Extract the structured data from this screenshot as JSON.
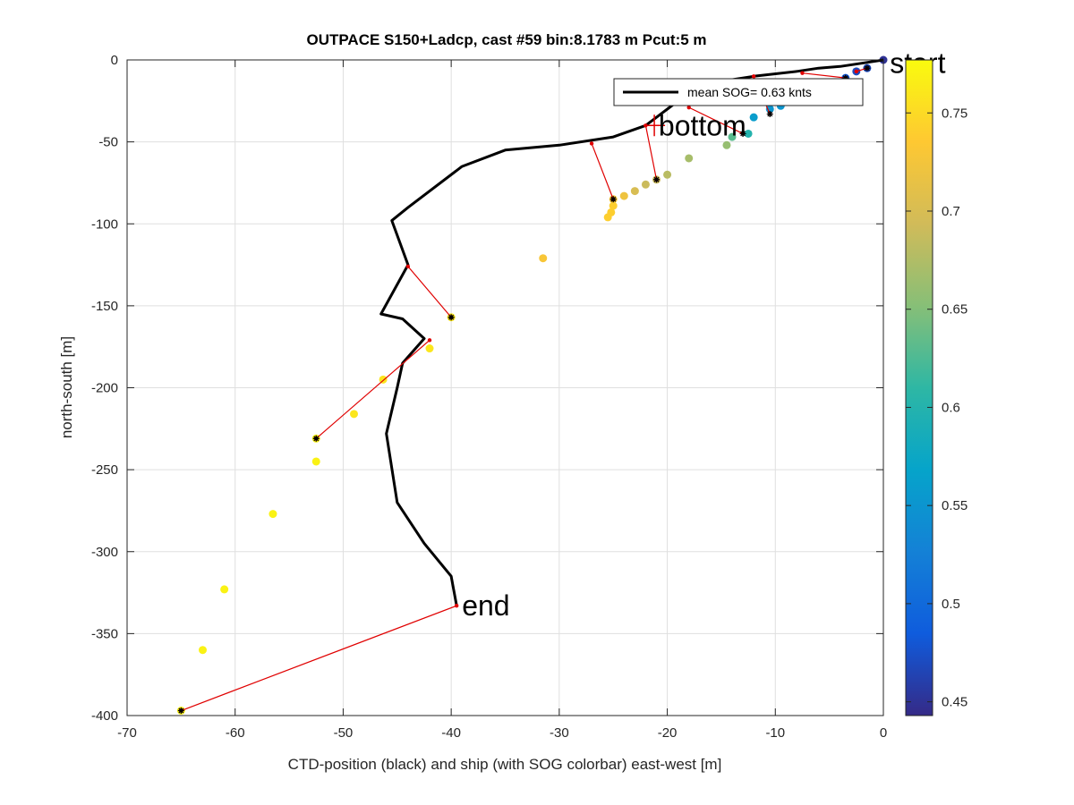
{
  "chart_data": {
    "type": "scatter",
    "title": "OUTPACE S150+Ladcp, cast #59 bin:8.1783 m  Pcut:5 m",
    "xlabel": "CTD-position (black) and ship (with SOG colorbar) east-west [m]",
    "ylabel": "north-south [m]",
    "xlim": [
      -70,
      0
    ],
    "ylim": [
      -400,
      0
    ],
    "xticks": [
      -70,
      -60,
      -50,
      -40,
      -30,
      -20,
      -10,
      0
    ],
    "yticks": [
      0,
      -50,
      -100,
      -150,
      -200,
      -250,
      -300,
      -350,
      -400
    ],
    "xtick_labels": [
      "-70",
      "-60",
      "-50",
      "-40",
      "-30",
      "-20",
      "-10",
      "0"
    ],
    "ytick_labels": [
      "0",
      "-50",
      "-100",
      "-150",
      "-200",
      "-250",
      "-300",
      "-350",
      "-400"
    ],
    "grid": true,
    "legend": {
      "label": "mean SOG=  0.63 knts",
      "location": "top-right"
    },
    "colorbar": {
      "clim": [
        0.443,
        0.777
      ],
      "ticks": [
        0.45,
        0.5,
        0.55,
        0.6,
        0.65,
        0.7,
        0.75
      ],
      "tick_labels": [
        "0.45",
        "0.5",
        "0.55",
        "0.6",
        "0.65",
        "0.7",
        "0.75"
      ],
      "colormap": [
        "#352a87",
        "#0f5cdd",
        "#1481d6",
        "#06a4ca",
        "#2eb7a4",
        "#87bf77",
        "#d1bb59",
        "#fec832",
        "#f9fb0e"
      ]
    },
    "ctd_track": [
      [
        0,
        0
      ],
      [
        -2,
        -2
      ],
      [
        -4,
        -4
      ],
      [
        -6,
        -5
      ],
      [
        -8,
        -7
      ],
      [
        -12,
        -10
      ],
      [
        -16,
        -14
      ],
      [
        -18,
        -20
      ],
      [
        -20,
        -30
      ],
      [
        -22,
        -40
      ],
      [
        -25,
        -47
      ],
      [
        -30,
        -52
      ],
      [
        -35,
        -55
      ],
      [
        -39,
        -65
      ],
      [
        -44,
        -90
      ],
      [
        -45.5,
        -98
      ],
      [
        -44,
        -125
      ],
      [
        -46.5,
        -155
      ],
      [
        -44.5,
        -158
      ],
      [
        -42.5,
        -170
      ],
      [
        -44.5,
        -185
      ],
      [
        -45,
        -200
      ],
      [
        -46,
        -228
      ],
      [
        -45,
        -270
      ],
      [
        -42.5,
        -295
      ],
      [
        -40,
        -315
      ],
      [
        -39.5,
        -333
      ]
    ],
    "ship_positions": [
      {
        "x": 0,
        "y": 0,
        "sog": 0.45
      },
      {
        "x": -1.5,
        "y": -5,
        "sog": 0.47
      },
      {
        "x": -2.5,
        "y": -7,
        "sog": 0.47
      },
      {
        "x": -3.5,
        "y": -11,
        "sog": 0.48
      },
      {
        "x": -9.5,
        "y": -28,
        "sog": 0.55
      },
      {
        "x": -10.5,
        "y": -30,
        "sog": 0.55
      },
      {
        "x": -12,
        "y": -35,
        "sog": 0.56
      },
      {
        "x": -12.5,
        "y": -45,
        "sog": 0.6
      },
      {
        "x": -14,
        "y": -47,
        "sog": 0.63
      },
      {
        "x": -14.5,
        "y": -52,
        "sog": 0.66
      },
      {
        "x": -18,
        "y": -60,
        "sog": 0.67
      },
      {
        "x": -20,
        "y": -70,
        "sog": 0.68
      },
      {
        "x": -21,
        "y": -73,
        "sog": 0.69
      },
      {
        "x": -22,
        "y": -76,
        "sog": 0.69
      },
      {
        "x": -23,
        "y": -80,
        "sog": 0.7
      },
      {
        "x": -24,
        "y": -83,
        "sog": 0.72
      },
      {
        "x": -25,
        "y": -85,
        "sog": 0.73
      },
      {
        "x": -25,
        "y": -89,
        "sog": 0.74
      },
      {
        "x": -25.2,
        "y": -93,
        "sog": 0.74
      },
      {
        "x": -25.5,
        "y": -96,
        "sog": 0.74
      },
      {
        "x": -31.5,
        "y": -121,
        "sog": 0.73
      },
      {
        "x": -40,
        "y": -157,
        "sog": 0.76
      },
      {
        "x": -42,
        "y": -176,
        "sog": 0.76
      },
      {
        "x": -46.3,
        "y": -195,
        "sog": 0.76
      },
      {
        "x": -49,
        "y": -216,
        "sog": 0.76
      },
      {
        "x": -52.5,
        "y": -231,
        "sog": 0.77
      },
      {
        "x": -52.5,
        "y": -245,
        "sog": 0.77
      },
      {
        "x": -56.5,
        "y": -277,
        "sog": 0.77
      },
      {
        "x": -61,
        "y": -323,
        "sog": 0.77
      },
      {
        "x": -63,
        "y": -360,
        "sog": 0.77
      },
      {
        "x": -65,
        "y": -397,
        "sog": 0.77
      }
    ],
    "connectors": [
      [
        [
          -2.5,
          -7
        ],
        [
          -1.5,
          -5
        ]
      ],
      [
        [
          -7.5,
          -8
        ],
        [
          -3.5,
          -11
        ]
      ],
      [
        [
          -12,
          -10
        ],
        [
          -10.5,
          -33
        ]
      ],
      [
        [
          -18,
          -29
        ],
        [
          -13,
          -45
        ]
      ],
      [
        [
          -22,
          -40
        ],
        [
          -21,
          -73
        ]
      ],
      [
        [
          -27,
          -51
        ],
        [
          -25,
          -85
        ]
      ],
      [
        [
          -44,
          -126
        ],
        [
          -40,
          -157
        ]
      ],
      [
        [
          -42,
          -171
        ],
        [
          -52.5,
          -231
        ]
      ],
      [
        [
          -39.5,
          -333
        ],
        [
          -65,
          -397
        ]
      ]
    ],
    "black_markers": [
      [
        -1.5,
        -5
      ],
      [
        -3.5,
        -11
      ],
      [
        -10.5,
        -33
      ],
      [
        -13,
        -45
      ],
      [
        -21,
        -73
      ],
      [
        -25,
        -85
      ],
      [
        -40,
        -157
      ],
      [
        -52.5,
        -231
      ],
      [
        -65,
        -397
      ]
    ],
    "annotations": [
      {
        "text": "start",
        "x": 0.6,
        "y": -2
      },
      {
        "text": "bottom",
        "x": -20.8,
        "y": -40
      },
      {
        "text": "end",
        "x": -39,
        "y": -333
      }
    ],
    "bottom_marker": {
      "x": -21.2,
      "y": -40
    }
  }
}
